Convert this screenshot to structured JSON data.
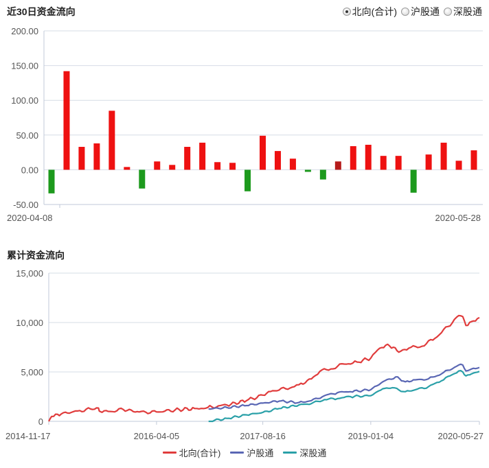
{
  "colors": {
    "positive": "#ee1111",
    "positive_dark": "#b51b1b",
    "negative": "#1d9a1d",
    "north": "#e03c3c",
    "shanghai": "#5a67b4",
    "shenzhen": "#2aa0a8",
    "grid": "#d6dce6",
    "axis": "#c2cad8"
  },
  "header": {
    "title": "近30日资金流向",
    "radios": [
      {
        "label": "北向(合计)",
        "selected": true
      },
      {
        "label": "沪股通",
        "selected": false
      },
      {
        "label": "深股通",
        "selected": false
      }
    ]
  },
  "bottom": {
    "title": "累计资金流向"
  },
  "chart_data": [
    {
      "type": "bar",
      "title": "近30日资金流向",
      "ylim": [
        -50,
        200
      ],
      "yticks": [
        "200.00",
        "150.00",
        "100.00",
        "50.00",
        "0.00",
        "-50.00"
      ],
      "x_labels": [
        "2020-04-08",
        "2020-05-28"
      ],
      "values": [
        -34,
        142,
        33,
        38,
        85,
        4,
        -27,
        12,
        7,
        33,
        39,
        11,
        10,
        -31,
        49,
        27,
        16,
        -3,
        -14,
        12,
        34,
        36,
        20,
        20,
        -33,
        22,
        39,
        13,
        28
      ],
      "highlight_index": 19
    },
    {
      "type": "line",
      "title": "累计资金流向",
      "ylim": [
        0,
        15000
      ],
      "yticks": [
        "15,000",
        "10,000",
        "5,000",
        "0"
      ],
      "x_labels": [
        "2014-11-17",
        "2016-04-05",
        "2017-08-16",
        "2019-01-04",
        "2020-05-27"
      ],
      "x_range": [
        "2014-11-17",
        "2020-05-27"
      ],
      "series": [
        {
          "name": "北向(合计)",
          "points": [
            [
              "2014-11-17",
              0
            ],
            [
              "2014-12-01",
              500
            ],
            [
              "2015-01-15",
              750
            ],
            [
              "2015-04-01",
              1050
            ],
            [
              "2015-06-01",
              1250
            ],
            [
              "2015-07-08",
              1350
            ],
            [
              "2015-07-15",
              1000
            ],
            [
              "2015-09-01",
              1000
            ],
            [
              "2015-11-01",
              1200
            ],
            [
              "2016-01-15",
              950
            ],
            [
              "2016-04-05",
              950
            ],
            [
              "2016-07-01",
              1150
            ],
            [
              "2016-10-01",
              1300
            ],
            [
              "2016-12-01",
              1400
            ],
            [
              "2017-03-01",
              1650
            ],
            [
              "2017-06-01",
              2100
            ],
            [
              "2017-08-16",
              2650
            ],
            [
              "2017-10-01",
              3100
            ],
            [
              "2017-12-01",
              3300
            ],
            [
              "2018-02-01",
              3700
            ],
            [
              "2018-04-01",
              4300
            ],
            [
              "2018-05-10",
              5050
            ],
            [
              "2018-07-01",
              5300
            ],
            [
              "2018-09-01",
              5800
            ],
            [
              "2018-11-01",
              6000
            ],
            [
              "2019-01-04",
              6400
            ],
            [
              "2019-02-15",
              7400
            ],
            [
              "2019-03-15",
              7700
            ],
            [
              "2019-04-20",
              7500
            ],
            [
              "2019-05-15",
              7000
            ],
            [
              "2019-07-01",
              7400
            ],
            [
              "2019-09-01",
              7600
            ],
            [
              "2019-11-01",
              8400
            ],
            [
              "2020-01-01",
              9600
            ],
            [
              "2020-02-20",
              10700
            ],
            [
              "2020-03-10",
              10600
            ],
            [
              "2020-03-25",
              9700
            ],
            [
              "2020-04-20",
              10100
            ],
            [
              "2020-05-27",
              10500
            ]
          ]
        },
        {
          "name": "沪股通",
          "points": [
            [
              "2016-12-05",
              1250
            ],
            [
              "2017-03-01",
              1400
            ],
            [
              "2017-06-01",
              1600
            ],
            [
              "2017-08-16",
              1850
            ],
            [
              "2017-11-01",
              2050
            ],
            [
              "2018-02-01",
              1900
            ],
            [
              "2018-04-01",
              2100
            ],
            [
              "2018-06-01",
              2600
            ],
            [
              "2018-08-01",
              2900
            ],
            [
              "2018-10-01",
              3000
            ],
            [
              "2019-01-04",
              3200
            ],
            [
              "2019-03-01",
              4000
            ],
            [
              "2019-05-01",
              4500
            ],
            [
              "2019-06-15",
              4000
            ],
            [
              "2019-08-01",
              4200
            ],
            [
              "2019-10-01",
              4300
            ],
            [
              "2019-12-01",
              4800
            ],
            [
              "2020-02-20",
              5700
            ],
            [
              "2020-03-10",
              5700
            ],
            [
              "2020-03-25",
              5100
            ],
            [
              "2020-04-20",
              5300
            ],
            [
              "2020-05-27",
              5450
            ]
          ]
        },
        {
          "name": "深股通",
          "points": [
            [
              "2016-12-05",
              0
            ],
            [
              "2017-03-01",
              300
            ],
            [
              "2017-06-01",
              650
            ],
            [
              "2017-08-16",
              900
            ],
            [
              "2017-11-01",
              1300
            ],
            [
              "2018-02-01",
              1650
            ],
            [
              "2018-04-01",
              1800
            ],
            [
              "2018-06-01",
              2200
            ],
            [
              "2018-08-01",
              2300
            ],
            [
              "2018-10-01",
              2500
            ],
            [
              "2019-01-04",
              2600
            ],
            [
              "2019-03-01",
              3300
            ],
            [
              "2019-04-15",
              3400
            ],
            [
              "2019-06-15",
              3000
            ],
            [
              "2019-08-01",
              3200
            ],
            [
              "2019-10-01",
              3500
            ],
            [
              "2019-12-01",
              4100
            ],
            [
              "2020-02-20",
              5100
            ],
            [
              "2020-03-10",
              5000
            ],
            [
              "2020-03-25",
              4600
            ],
            [
              "2020-04-20",
              4800
            ],
            [
              "2020-05-27",
              5050
            ]
          ]
        }
      ]
    }
  ]
}
